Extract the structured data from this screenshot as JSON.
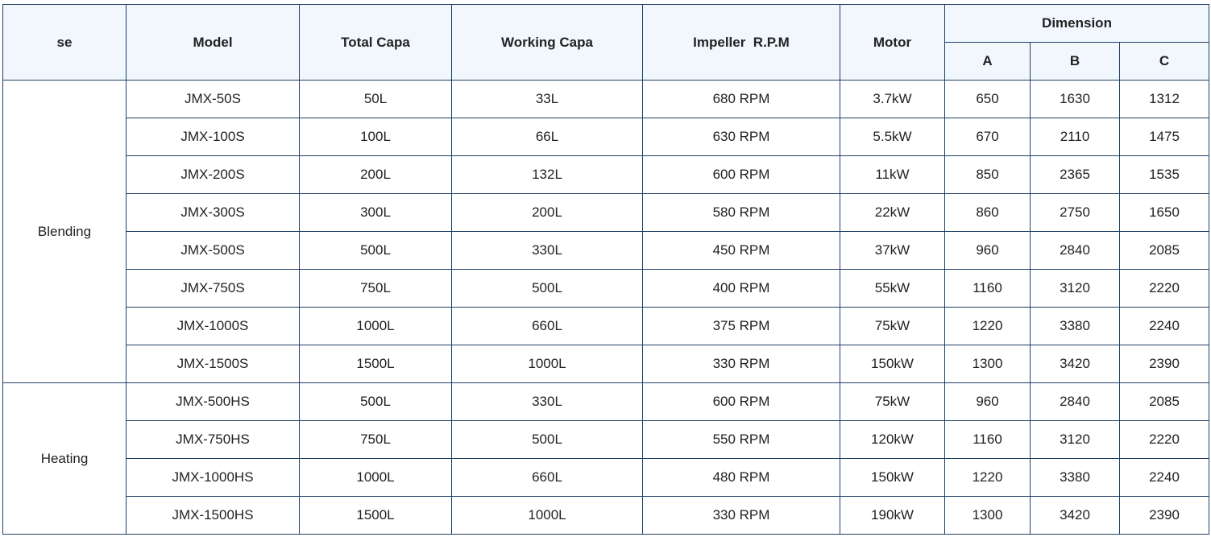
{
  "headers": {
    "use": "se",
    "model": "Model",
    "total_capa": "Total Capa",
    "working_capa": "Working Capa",
    "impeller": "Impeller  R.P.M",
    "motor": "Motor",
    "dimension": "Dimension",
    "a": "A",
    "b": "B",
    "c": "C"
  },
  "groups": [
    {
      "label": "Blending",
      "rows": [
        {
          "model": "JMX-50S",
          "total": "50L",
          "working": "33L",
          "rpm": "680 RPM",
          "motor": "3.7kW",
          "a": "650",
          "b": "1630",
          "c": "1312"
        },
        {
          "model": "JMX-100S",
          "total": "100L",
          "working": "66L",
          "rpm": "630 RPM",
          "motor": "5.5kW",
          "a": "670",
          "b": "2110",
          "c": "1475"
        },
        {
          "model": "JMX-200S",
          "total": "200L",
          "working": "132L",
          "rpm": "600 RPM",
          "motor": "11kW",
          "a": "850",
          "b": "2365",
          "c": "1535"
        },
        {
          "model": "JMX-300S",
          "total": "300L",
          "working": "200L",
          "rpm": "580 RPM",
          "motor": "22kW",
          "a": "860",
          "b": "2750",
          "c": "1650"
        },
        {
          "model": "JMX-500S",
          "total": "500L",
          "working": "330L",
          "rpm": "450 RPM",
          "motor": "37kW",
          "a": "960",
          "b": "2840",
          "c": "2085"
        },
        {
          "model": "JMX-750S",
          "total": "750L",
          "working": "500L",
          "rpm": "400 RPM",
          "motor": "55kW",
          "a": "1160",
          "b": "3120",
          "c": "2220"
        },
        {
          "model": "JMX-1000S",
          "total": "1000L",
          "working": "660L",
          "rpm": "375 RPM",
          "motor": "75kW",
          "a": "1220",
          "b": "3380",
          "c": "2240"
        },
        {
          "model": "JMX-1500S",
          "total": "1500L",
          "working": "1000L",
          "rpm": "330 RPM",
          "motor": "150kW",
          "a": "1300",
          "b": "3420",
          "c": "2390"
        }
      ]
    },
    {
      "label": "Heating",
      "rows": [
        {
          "model": "JMX-500HS",
          "total": "500L",
          "working": "330L",
          "rpm": "600 RPM",
          "motor": "75kW",
          "a": "960",
          "b": "2840",
          "c": "2085"
        },
        {
          "model": "JMX-750HS",
          "total": "750L",
          "working": "500L",
          "rpm": "550 RPM",
          "motor": "120kW",
          "a": "1160",
          "b": "3120",
          "c": "2220"
        },
        {
          "model": "JMX-1000HS",
          "total": "1000L",
          "working": "660L",
          "rpm": "480 RPM",
          "motor": "150kW",
          "a": "1220",
          "b": "3380",
          "c": "2240"
        },
        {
          "model": "JMX-1500HS",
          "total": "1500L",
          "working": "1000L",
          "rpm": "330 RPM",
          "motor": "190kW",
          "a": "1300",
          "b": "3420",
          "c": "2390"
        }
      ]
    }
  ]
}
